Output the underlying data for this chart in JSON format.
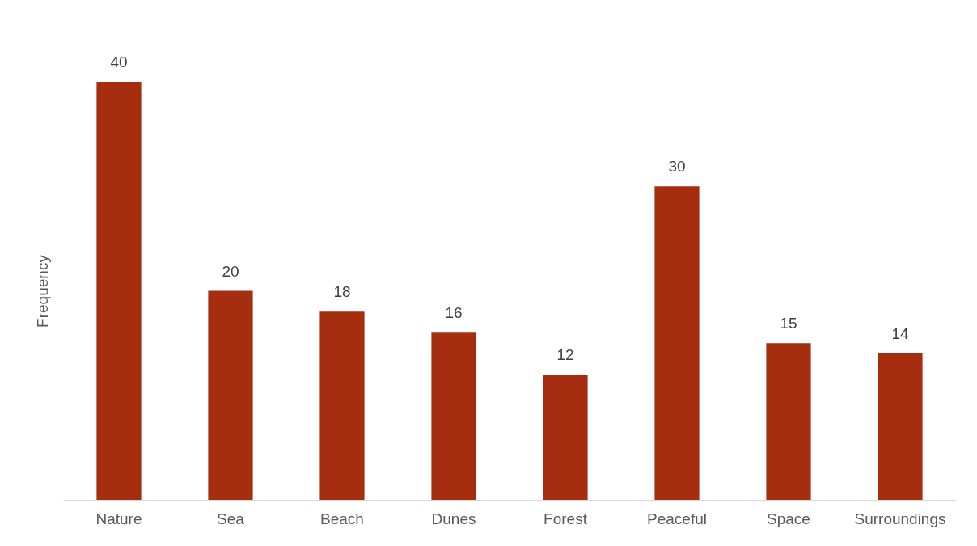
{
  "chart_data": {
    "type": "bar",
    "ylabel": "Frequency",
    "categories": [
      "Nature",
      "Sea",
      "Beach",
      "Dunes",
      "Forest",
      "Peaceful",
      "Space",
      "Surroundings"
    ],
    "values": [
      40,
      20,
      18,
      16,
      12,
      30,
      15,
      14
    ],
    "color": "#a52e10",
    "data_labels": true
  }
}
